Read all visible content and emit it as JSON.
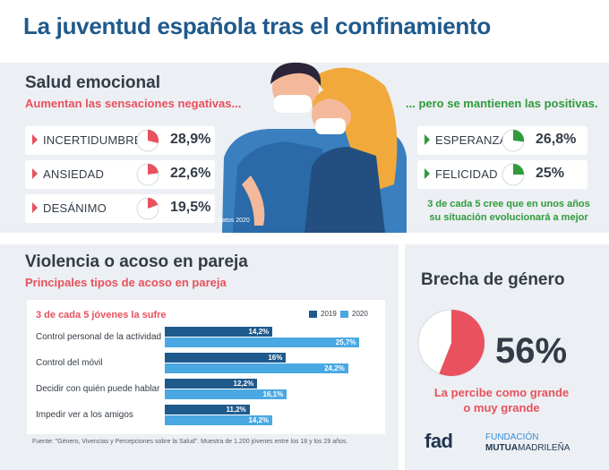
{
  "title": "La juventud española tras el confinamiento",
  "salud": {
    "heading": "Salud emocional",
    "neg_sub": "Aumentan las sensaciones negativas...",
    "pos_sub": "... pero se mantienen las positivas.",
    "negative": [
      {
        "label": "INCERTIDUMBRE",
        "value": "28,9%",
        "pct": 28.9
      },
      {
        "label": "ANSIEDAD",
        "value": "22,6%",
        "pct": 22.6
      },
      {
        "label": "DESÁNIMO",
        "value": "19,5%",
        "pct": 19.5
      }
    ],
    "positive": [
      {
        "label": "ESPERANZA",
        "value": "26,8%",
        "pct": 26.8
      },
      {
        "label": "FELICIDAD",
        "value": "25%",
        "pct": 25
      }
    ],
    "note_line1": "3 de cada 5 cree que en unos años",
    "note_line2": "su situación evolucionará a mejor",
    "datos": "Datos 2020"
  },
  "violencia": {
    "heading": "Violencia o acoso en pareja",
    "sub": "Principales tipos de acoso en pareja",
    "chart_sub": "3 de cada 5 jóvenes la sufre",
    "fuente": "Fuente: \"Género, Vivencias y Percepciones sobre la Salud\". Muestra de 1.200 jóvenes entre los 18 y los 29 años."
  },
  "brecha": {
    "heading": "Brecha de género",
    "value": "56%",
    "pct": 56,
    "note_line1": "La percibe como grande",
    "note_line2": "o muy grande"
  },
  "logos": {
    "fad": "fad",
    "fund_line1": "FUNDACIÓN",
    "fund_line2a": "MUTUA",
    "fund_line2b": "MADRILEÑA"
  },
  "colors": {
    "red": "#e8515d",
    "green": "#2f9b3b",
    "dark_blue": "#1f5a8c",
    "light_blue": "#4aa8e3"
  },
  "chart_data": {
    "type": "bar",
    "orientation": "horizontal",
    "categories": [
      "Control personal de la actividad",
      "Control del móvil",
      "Decidir con quién puede hablar",
      "Impedir ver a los amigos"
    ],
    "series": [
      {
        "name": "2019",
        "values": [
          14.2,
          16,
          12.2,
          11.2
        ],
        "labels": [
          "14,2%",
          "16%",
          "12,2%",
          "11,2%"
        ],
        "color": "#1f5a8c"
      },
      {
        "name": "2020",
        "values": [
          25.7,
          24.2,
          16.1,
          14.2
        ],
        "labels": [
          "25,7%",
          "24,2%",
          "16,1%",
          "14,2%"
        ],
        "color": "#4aa8e3"
      }
    ],
    "legend": "top-right"
  }
}
